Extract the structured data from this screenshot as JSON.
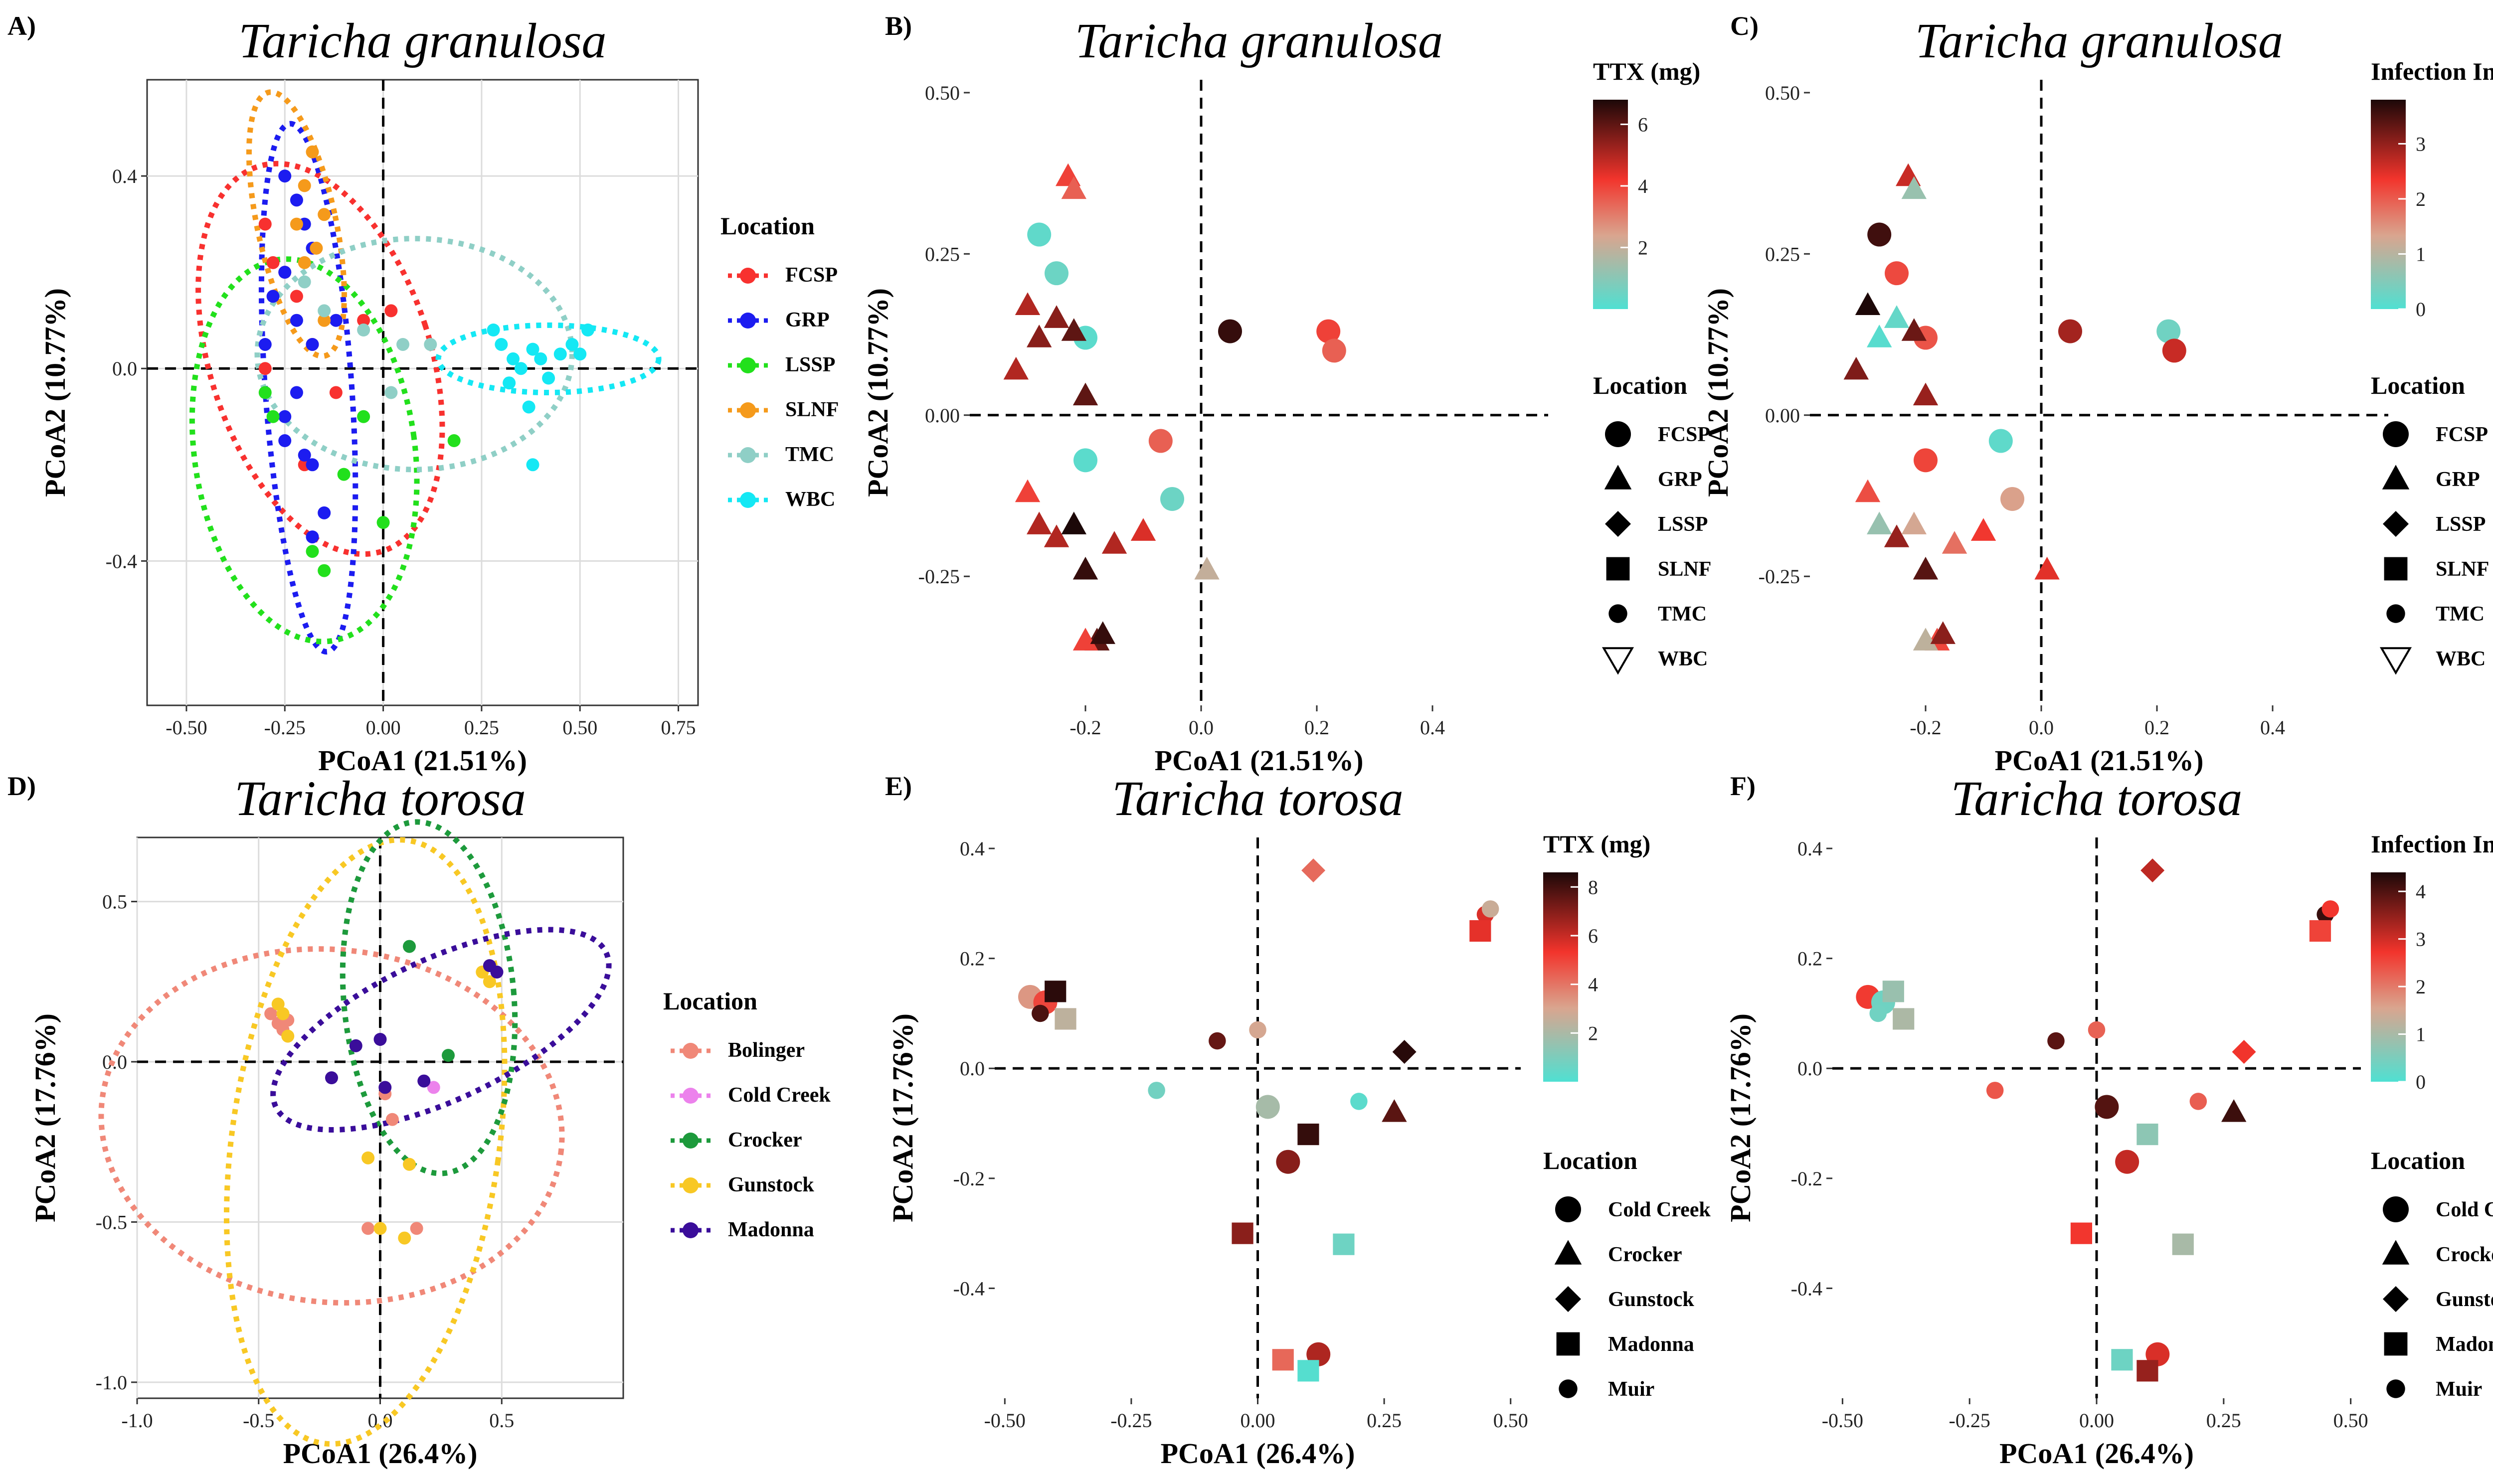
{
  "colors": {
    "FCSP": "#f8312f",
    "GRP": "#1c1cf0",
    "LSSP": "#22e01c",
    "SLNF": "#f59a1b",
    "TMC": "#8fcfc6",
    "WBC": "#14e8f4",
    "Bolinger": "#f08878",
    "Cold Creek": "#ec82ec",
    "Crocker": "#1d9a3c",
    "Gunstock": "#f8c824",
    "Madonna": "#3a0d9a",
    "grad_low": "#4fe0d2",
    "grad_mid1": "#d9a58f",
    "grad_mid2": "#f2342c",
    "grad_high": "#1c0808"
  },
  "chart_data": [
    {
      "panel": "A)",
      "type": "scatter",
      "title": "Taricha granulosa",
      "xlabel": "PCoA1 (21.51%)",
      "ylabel": "PCoA2 (10.77%)",
      "xlim": [
        -0.6,
        0.8
      ],
      "ylim": [
        -0.7,
        0.6
      ],
      "xticks": [
        -0.5,
        -0.25,
        0.0,
        0.25,
        0.5,
        0.75
      ],
      "xtick_labels": [
        "-0.50",
        "-0.25",
        "0.00",
        "0.25",
        "0.50",
        "0.75"
      ],
      "yticks": [
        -0.4,
        0.0,
        0.4
      ],
      "ytick_labels": [
        "-0.4",
        "0.0",
        "0.4"
      ],
      "legend_title": "Location",
      "legend": [
        "FCSP",
        "GRP",
        "LSSP",
        "SLNF",
        "TMC",
        "WBC"
      ],
      "series": [
        {
          "name": "FCSP",
          "points": [
            [
              -0.3,
              0.3
            ],
            [
              -0.25,
              0.2
            ],
            [
              -0.22,
              0.15
            ],
            [
              -0.18,
              0.05
            ],
            [
              -0.12,
              -0.05
            ],
            [
              -0.05,
              0.1
            ],
            [
              0.02,
              0.12
            ],
            [
              -0.3,
              0.0
            ],
            [
              -0.2,
              -0.2
            ],
            [
              -0.28,
              0.22
            ]
          ]
        },
        {
          "name": "GRP",
          "points": [
            [
              -0.25,
              0.4
            ],
            [
              -0.22,
              0.35
            ],
            [
              -0.2,
              0.3
            ],
            [
              -0.18,
              0.25
            ],
            [
              -0.25,
              0.2
            ],
            [
              -0.28,
              0.15
            ],
            [
              -0.22,
              0.1
            ],
            [
              -0.18,
              0.05
            ],
            [
              -0.25,
              -0.15
            ],
            [
              -0.2,
              -0.18
            ],
            [
              -0.18,
              -0.2
            ],
            [
              -0.25,
              -0.1
            ],
            [
              -0.15,
              -0.3
            ],
            [
              -0.18,
              -0.35
            ],
            [
              -0.22,
              -0.05
            ],
            [
              -0.12,
              0.1
            ],
            [
              -0.3,
              0.05
            ]
          ]
        },
        {
          "name": "LSSP",
          "points": [
            [
              -0.3,
              -0.05
            ],
            [
              -0.28,
              -0.1
            ],
            [
              -0.18,
              -0.38
            ],
            [
              -0.15,
              -0.42
            ],
            [
              -0.1,
              -0.22
            ],
            [
              0.0,
              -0.32
            ],
            [
              0.18,
              -0.15
            ],
            [
              -0.05,
              -0.1
            ]
          ]
        },
        {
          "name": "SLNF",
          "points": [
            [
              -0.18,
              0.45
            ],
            [
              -0.2,
              0.38
            ],
            [
              -0.22,
              0.3
            ],
            [
              -0.15,
              0.32
            ],
            [
              -0.17,
              0.25
            ],
            [
              -0.2,
              0.22
            ],
            [
              -0.15,
              0.1
            ]
          ]
        },
        {
          "name": "TMC",
          "points": [
            [
              -0.2,
              0.18
            ],
            [
              -0.15,
              0.12
            ],
            [
              -0.05,
              0.08
            ],
            [
              0.05,
              0.05
            ],
            [
              0.12,
              0.05
            ],
            [
              0.02,
              -0.05
            ]
          ]
        },
        {
          "name": "WBC",
          "points": [
            [
              0.3,
              0.05
            ],
            [
              0.33,
              0.02
            ],
            [
              0.35,
              0.0
            ],
            [
              0.38,
              0.04
            ],
            [
              0.4,
              0.02
            ],
            [
              0.42,
              -0.02
            ],
            [
              0.45,
              0.03
            ],
            [
              0.48,
              0.05
            ],
            [
              0.5,
              0.03
            ],
            [
              0.37,
              -0.08
            ],
            [
              0.28,
              0.08
            ],
            [
              0.32,
              -0.03
            ],
            [
              0.38,
              -0.2
            ],
            [
              0.52,
              0.08
            ]
          ]
        }
      ],
      "ellipses": [
        {
          "name": "FCSP",
          "center": [
            -0.16,
            0.02
          ],
          "rx": 0.28,
          "ry": 0.42,
          "angle": 18
        },
        {
          "name": "GRP",
          "center": [
            -0.19,
            -0.04
          ],
          "rx": 0.11,
          "ry": 0.55,
          "angle": 4
        },
        {
          "name": "LSSP",
          "center": [
            -0.2,
            -0.17
          ],
          "rx": 0.28,
          "ry": 0.4,
          "angle": 8
        },
        {
          "name": "SLNF",
          "center": [
            -0.22,
            0.3
          ],
          "rx": 0.1,
          "ry": 0.28,
          "angle": 12
        },
        {
          "name": "TMC",
          "center": [
            0.08,
            0.03
          ],
          "rx": 0.4,
          "ry": 0.24,
          "angle": 0
        },
        {
          "name": "WBC",
          "center": [
            0.42,
            0.02
          ],
          "rx": 0.28,
          "ry": 0.07,
          "angle": 0
        }
      ]
    },
    {
      "panel": "B)",
      "type": "scatter",
      "title": "Taricha granulosa",
      "xlabel": "PCoA1 (21.51%)",
      "ylabel": "PCoA2 (10.77%)",
      "xlim": [
        -0.4,
        0.6
      ],
      "ylim": [
        -0.45,
        0.52
      ],
      "xticks": [
        -0.2,
        0.0,
        0.2,
        0.4
      ],
      "xtick_labels": [
        "-0.2",
        "0.0",
        "0.2",
        "0.4"
      ],
      "yticks": [
        -0.25,
        0.0,
        0.25,
        0.5
      ],
      "ytick_labels": [
        "-0.25",
        "0.00",
        "0.25",
        "0.50"
      ],
      "colorbar": {
        "title": "TTX (mg)",
        "range": [
          0,
          6.8
        ],
        "ticks": [
          2,
          4,
          6
        ],
        "tick_labels": [
          "2",
          "4",
          "6"
        ]
      },
      "legend_title": "Location",
      "legend": [
        "FCSP",
        "GRP",
        "LSSP",
        "SLNF",
        "TMC",
        "WBC"
      ],
      "points": [
        [
          -0.28,
          0.28,
          "FCSP",
          0.3
        ],
        [
          -0.25,
          0.22,
          "FCSP",
          0.5
        ],
        [
          -0.2,
          0.12,
          "FCSP",
          0.2
        ],
        [
          -0.2,
          -0.07,
          "FCSP",
          0.2
        ],
        [
          -0.05,
          -0.13,
          "FCSP",
          0.5
        ],
        [
          0.22,
          0.13,
          "FCSP",
          4
        ],
        [
          0.23,
          0.1,
          "FCSP",
          3.5
        ],
        [
          0.05,
          0.13,
          "FCSP",
          6.5
        ],
        [
          -0.07,
          -0.04,
          "FCSP",
          3.5
        ],
        [
          -0.23,
          0.37,
          "GRP",
          4
        ],
        [
          -0.22,
          0.35,
          "GRP",
          3.5
        ],
        [
          -0.32,
          0.07,
          "GRP",
          5
        ],
        [
          -0.3,
          0.17,
          "GRP",
          5
        ],
        [
          -0.25,
          0.15,
          "GRP",
          5.5
        ],
        [
          -0.22,
          0.13,
          "GRP",
          6
        ],
        [
          -0.28,
          0.12,
          "GRP",
          5.5
        ],
        [
          -0.2,
          0.03,
          "GRP",
          6
        ],
        [
          -0.3,
          -0.12,
          "GRP",
          4
        ],
        [
          -0.28,
          -0.17,
          "GRP",
          5
        ],
        [
          -0.25,
          -0.19,
          "GRP",
          5
        ],
        [
          -0.22,
          -0.17,
          "GRP",
          6.8
        ],
        [
          -0.2,
          -0.24,
          "GRP",
          6.5
        ],
        [
          -0.15,
          -0.2,
          "GRP",
          5
        ],
        [
          -0.1,
          -0.18,
          "GRP",
          4.5
        ],
        [
          -0.18,
          -0.35,
          "GRP",
          6
        ],
        [
          -0.2,
          -0.35,
          "GRP",
          4
        ],
        [
          -0.17,
          -0.34,
          "GRP",
          6.5
        ],
        [
          0.01,
          -0.24,
          "GRP",
          2
        ]
      ]
    },
    {
      "panel": "C)",
      "type": "scatter",
      "title": "Taricha granulosa",
      "xlabel": "PCoA1 (21.51%)",
      "ylabel": "PCoA2 (10.77%)",
      "xlim": [
        -0.4,
        0.6
      ],
      "ylim": [
        -0.45,
        0.52
      ],
      "xticks": [
        -0.2,
        0.0,
        0.2,
        0.4
      ],
      "xtick_labels": [
        "-0.2",
        "0.0",
        "0.2",
        "0.4"
      ],
      "yticks": [
        -0.25,
        0.0,
        0.25,
        0.5
      ],
      "ytick_labels": [
        "-0.25",
        "0.00",
        "0.25",
        "0.50"
      ],
      "colorbar": {
        "title": "Infection Intensity",
        "range": [
          0,
          3.8
        ],
        "ticks": [
          0,
          1,
          2,
          3
        ],
        "tick_labels": [
          "0",
          "1",
          "2",
          "3"
        ]
      },
      "legend_title": "Location",
      "legend": [
        "FCSP",
        "GRP",
        "LSSP",
        "SLNF",
        "TMC",
        "WBC"
      ]
    },
    {
      "panel": "D)",
      "type": "scatter",
      "title": "Taricha torosa",
      "xlabel": "PCoA1 (26.4%)",
      "ylabel": "PCoA2 (17.76%)",
      "xlim": [
        -1.0,
        1.0
      ],
      "ylim": [
        -1.05,
        0.7
      ],
      "xticks": [
        -1.0,
        -0.5,
        0.0,
        0.5
      ],
      "xtick_labels": [
        "-1.0",
        "-0.5",
        "0.0",
        "0.5"
      ],
      "yticks": [
        -1.0,
        -0.5,
        0.0,
        0.5
      ],
      "ytick_labels": [
        "-1.0",
        "-0.5",
        "0.0",
        "0.5"
      ],
      "legend_title": "Location",
      "legend": [
        "Bolinger",
        "Cold Creek",
        "Crocker",
        "Gunstock",
        "Madonna"
      ],
      "series": [
        {
          "name": "Bolinger",
          "points": [
            [
              -0.45,
              0.15
            ],
            [
              -0.42,
              0.12
            ],
            [
              -0.4,
              0.1
            ],
            [
              -0.38,
              0.13
            ],
            [
              0.02,
              -0.1
            ],
            [
              0.05,
              -0.18
            ],
            [
              -0.05,
              -0.52
            ],
            [
              0.15,
              -0.52
            ]
          ]
        },
        {
          "name": "Cold Creek",
          "points": [
            [
              0.22,
              -0.08
            ]
          ]
        },
        {
          "name": "Crocker",
          "points": [
            [
              0.12,
              0.36
            ],
            [
              0.28,
              0.02
            ]
          ]
        },
        {
          "name": "Gunstock",
          "points": [
            [
              -0.42,
              0.18
            ],
            [
              -0.4,
              0.15
            ],
            [
              -0.38,
              0.08
            ],
            [
              0.45,
              0.25
            ],
            [
              0.42,
              0.28
            ],
            [
              -0.05,
              -0.3
            ],
            [
              0.12,
              -0.32
            ],
            [
              0.1,
              -0.55
            ],
            [
              0.0,
              -0.52
            ]
          ]
        },
        {
          "name": "Madonna",
          "points": [
            [
              -0.1,
              0.05
            ],
            [
              0.0,
              0.07
            ],
            [
              0.45,
              0.3
            ],
            [
              0.48,
              0.28
            ],
            [
              0.18,
              -0.06
            ],
            [
              -0.2,
              -0.05
            ],
            [
              0.02,
              -0.08
            ]
          ]
        }
      ],
      "ellipses": [
        {
          "name": "Bolinger",
          "center": [
            -0.2,
            -0.2
          ],
          "rx": 0.95,
          "ry": 0.55,
          "angle": -6
        },
        {
          "name": "Gunstock",
          "center": [
            -0.06,
            -0.25
          ],
          "rx": 0.55,
          "ry": 0.95,
          "angle": -8
        },
        {
          "name": "Crocker",
          "center": [
            0.2,
            0.2
          ],
          "rx": 0.35,
          "ry": 0.55,
          "angle": 5
        },
        {
          "name": "Madonna",
          "center": [
            0.25,
            0.1
          ],
          "rx": 0.75,
          "ry": 0.22,
          "angle": 25
        }
      ]
    },
    {
      "panel": "E)",
      "type": "scatter",
      "title": "Taricha torosa",
      "xlabel": "PCoA1 (26.4%)",
      "ylabel": "PCoA2 (17.76%)",
      "xlim": [
        -0.52,
        0.52
      ],
      "ylim": [
        -0.6,
        0.42
      ],
      "xticks": [
        -0.5,
        -0.25,
        0.0,
        0.25,
        0.5
      ],
      "xtick_labels": [
        "-0.50",
        "-0.25",
        "0.00",
        "0.25",
        "0.50"
      ],
      "yticks": [
        -0.4,
        -0.2,
        0.0,
        0.2,
        0.4
      ],
      "ytick_labels": [
        "-0.4",
        "-0.2",
        "0.0",
        "0.2",
        "0.4"
      ],
      "colorbar": {
        "title": "TTX (mg)",
        "range": [
          0,
          8.6
        ],
        "ticks": [
          2,
          4,
          6,
          8
        ],
        "tick_labels": [
          "2",
          "4",
          "6",
          "8"
        ]
      },
      "legend_title": "Location",
      "legend": [
        "Cold Creek",
        "Crocker",
        "Gunstock",
        "Madonna",
        "Muir"
      ]
    },
    {
      "panel": "F)",
      "type": "scatter",
      "title": "Taricha torosa",
      "xlabel": "PCoA1 (26.4%)",
      "ylabel": "PCoA2 (17.76%)",
      "xlim": [
        -0.52,
        0.52
      ],
      "ylim": [
        -0.6,
        0.42
      ],
      "xticks": [
        -0.5,
        -0.25,
        0.0,
        0.25,
        0.5
      ],
      "xtick_labels": [
        "-0.50",
        "-0.25",
        "0.00",
        "0.25",
        "0.50"
      ],
      "yticks": [
        -0.4,
        -0.2,
        0.0,
        0.2,
        0.4
      ],
      "ytick_labels": [
        "-0.4",
        "-0.2",
        "0.0",
        "0.2",
        "0.4"
      ],
      "colorbar": {
        "title": "Infection Intensity",
        "range": [
          0,
          4.4
        ],
        "ticks": [
          0,
          1,
          2,
          3,
          4
        ],
        "tick_labels": [
          "0",
          "1",
          "2",
          "3",
          "4"
        ]
      },
      "legend_title": "Location",
      "legend": [
        "Cold Creek",
        "Crocker",
        "Gunstock",
        "Madonna",
        "Muir"
      ]
    }
  ]
}
